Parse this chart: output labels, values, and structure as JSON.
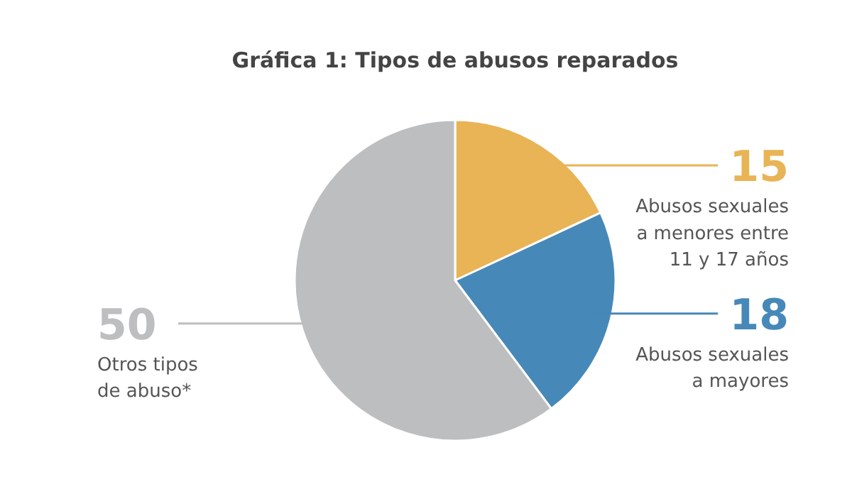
{
  "chart_data": {
    "type": "pie",
    "title": "Gráfica 1: Tipos de abusos reparados",
    "categories": [
      "Abusos sexuales\na menores entre\n11 y 17 años",
      "Abusos sexuales\na mayores",
      "Otros tipos\nde abuso*"
    ],
    "values": [
      15,
      18,
      50
    ],
    "colors": [
      "#e8b455",
      "#4689b9",
      "#bdbec0"
    ],
    "data_labels": true
  }
}
